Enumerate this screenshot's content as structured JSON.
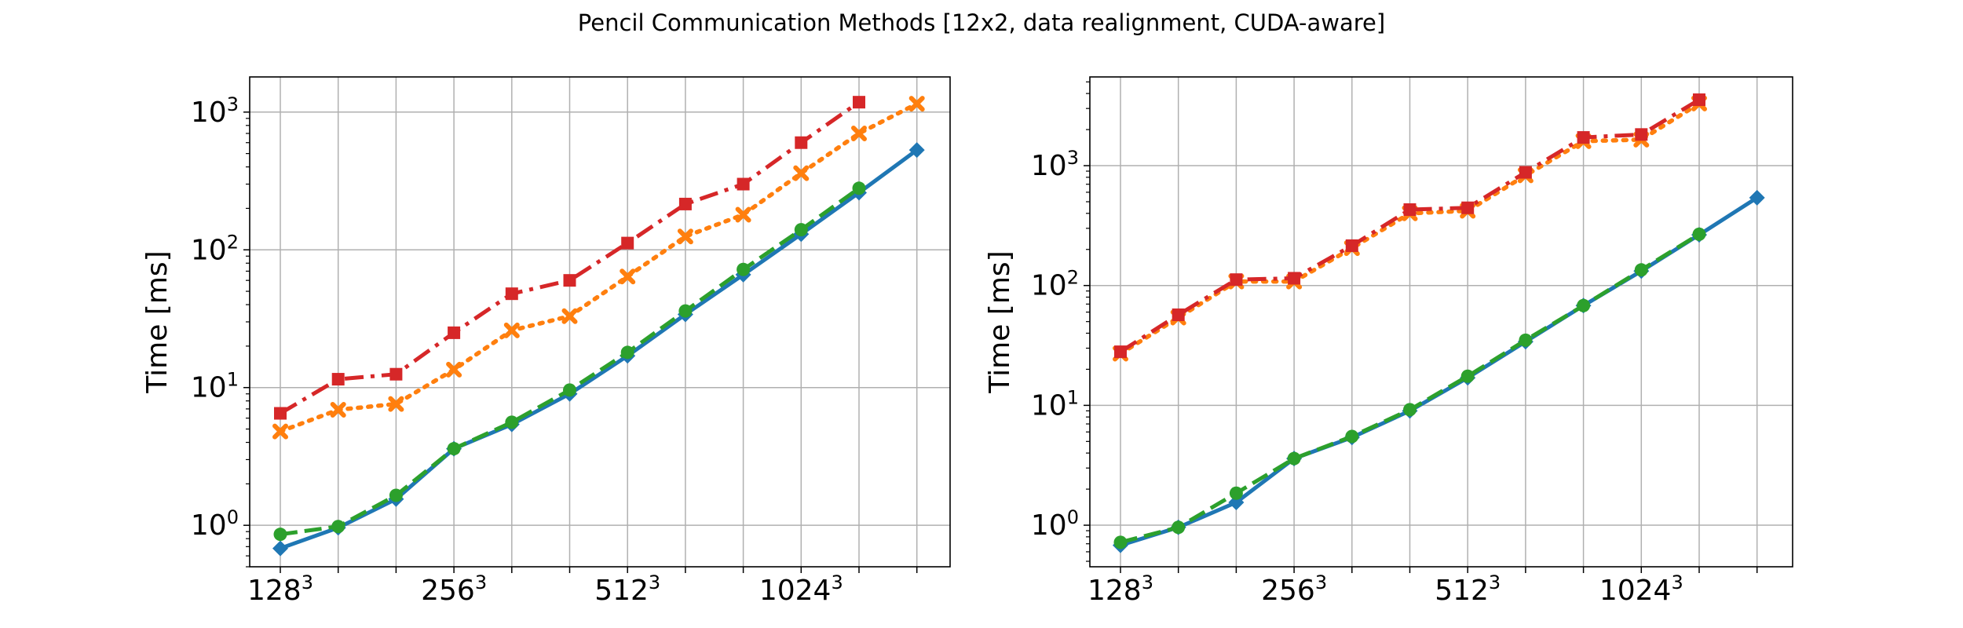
{
  "figure": {
    "title": "Pencil Communication Methods [12x2, data realignment, CUDA-aware]"
  },
  "chart_data": [
    {
      "type": "line",
      "yscale": "log",
      "ylabel": "Time [ms]",
      "xlabel": "",
      "x": [
        128,
        161,
        203,
        256,
        322,
        406,
        512,
        645,
        812,
        1024,
        1290,
        1625
      ],
      "xticks": [
        {
          "x": 128,
          "base": "128",
          "exp": "3"
        },
        {
          "x": 256,
          "base": "256",
          "exp": "3"
        },
        {
          "x": 512,
          "base": "512",
          "exp": "3"
        },
        {
          "x": 1024,
          "base": "1024",
          "exp": "3"
        }
      ],
      "yticks": [
        {
          "y": 1,
          "base": "10",
          "exp": "0"
        },
        {
          "y": 10,
          "base": "10",
          "exp": "1"
        },
        {
          "y": 100,
          "base": "10",
          "exp": "2"
        },
        {
          "y": 1000,
          "base": "10",
          "exp": "3"
        }
      ],
      "ylim": [
        0.5,
        1800
      ],
      "grid": true,
      "series": [
        {
          "color": "#1f77b4",
          "style": "solid",
          "marker": "diamond",
          "values": [
            0.68,
            0.96,
            1.55,
            3.6,
            5.4,
            9.0,
            17,
            34,
            66,
            130,
            260,
            530
          ]
        },
        {
          "color": "#ff7f0e",
          "style": "dotted",
          "marker": "x",
          "values": [
            4.8,
            6.9,
            7.6,
            13.5,
            26,
            33,
            64,
            125,
            180,
            360,
            700,
            1150
          ]
        },
        {
          "color": "#2ca02c",
          "style": "dashed",
          "marker": "circle",
          "values": [
            0.86,
            0.98,
            1.65,
            3.6,
            5.6,
            9.6,
            18,
            36,
            72,
            140,
            280,
            null
          ]
        },
        {
          "color": "#d62728",
          "style": "dashdot",
          "marker": "square",
          "values": [
            6.5,
            11.5,
            12.5,
            25,
            48,
            60,
            112,
            215,
            300,
            600,
            1180,
            null
          ]
        }
      ]
    },
    {
      "type": "line",
      "yscale": "log",
      "ylabel": "Time [ms]",
      "xlabel": "",
      "x": [
        128,
        161,
        203,
        256,
        322,
        406,
        512,
        645,
        812,
        1024,
        1290,
        1625
      ],
      "xticks": [
        {
          "x": 128,
          "base": "128",
          "exp": "3"
        },
        {
          "x": 256,
          "base": "256",
          "exp": "3"
        },
        {
          "x": 512,
          "base": "512",
          "exp": "3"
        },
        {
          "x": 1024,
          "base": "1024",
          "exp": "3"
        }
      ],
      "yticks": [
        {
          "y": 1,
          "base": "10",
          "exp": "0"
        },
        {
          "y": 10,
          "base": "10",
          "exp": "1"
        },
        {
          "y": 100,
          "base": "10",
          "exp": "2"
        },
        {
          "y": 1000,
          "base": "10",
          "exp": "3"
        }
      ],
      "ylim": [
        0.45,
        5500
      ],
      "grid": true,
      "series": [
        {
          "color": "#1f77b4",
          "style": "solid",
          "marker": "diamond",
          "values": [
            0.68,
            0.96,
            1.55,
            3.6,
            5.4,
            9.0,
            17,
            34,
            68,
            132,
            265,
            540
          ]
        },
        {
          "color": "#ff7f0e",
          "style": "dotted",
          "marker": "x",
          "values": [
            27,
            54,
            108,
            108,
            205,
            400,
            420,
            830,
            1600,
            1650,
            3300,
            null
          ]
        },
        {
          "color": "#2ca02c",
          "style": "dashed",
          "marker": "circle",
          "values": [
            0.72,
            0.96,
            1.85,
            3.6,
            5.5,
            9.2,
            17.5,
            35,
            68,
            135,
            268,
            null
          ]
        },
        {
          "color": "#d62728",
          "style": "dashdot",
          "marker": "square",
          "values": [
            28,
            57,
            112,
            115,
            215,
            430,
            445,
            880,
            1720,
            1820,
            3550,
            null
          ]
        }
      ]
    }
  ]
}
